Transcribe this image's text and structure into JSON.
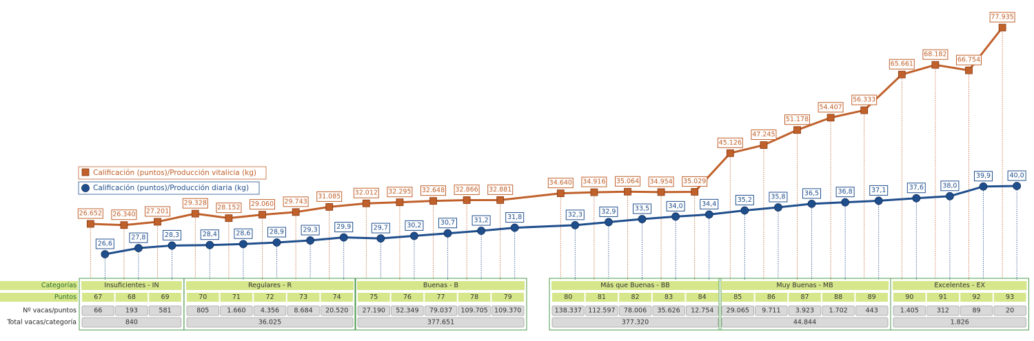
{
  "colors": {
    "orange": "#c0602a",
    "blue": "#1f4e8c",
    "green_cell": "#d6e68a",
    "green_border": "#4a9a4a",
    "gray_cell": "#d9d9d9"
  },
  "legend": {
    "orange_label": "Calificación (puntos)/Producción vitalicia (kg)",
    "blue_label": "Calificación (puntos)/Producción diaria (kg)",
    "placement": "left"
  },
  "table": {
    "row_labels": {
      "categories": "Categorías",
      "points": "Puntos",
      "cows_per_point": "Nº vacas/puntos",
      "total_per_category": "Total vacas/categoría"
    },
    "groups": [
      {
        "name": "Insuficientes - IN",
        "points": [
          "67",
          "68",
          "69"
        ],
        "cows": [
          "66",
          "193",
          "581"
        ],
        "total": "840"
      },
      {
        "name": "Regulares - R",
        "points": [
          "70",
          "71",
          "72",
          "73",
          "74"
        ],
        "cows": [
          "805",
          "1.660",
          "4.356",
          "8.684",
          "20.520"
        ],
        "total": "36.025"
      },
      {
        "name": "Buenas - B",
        "points": [
          "75",
          "76",
          "77",
          "78",
          "79"
        ],
        "cows": [
          "27.190",
          "52.349",
          "79.037",
          "109.705",
          "109.370"
        ],
        "total": "377.651"
      },
      {
        "name": "Más que Buenas - BB",
        "points": [
          "80",
          "81",
          "82",
          "83",
          "84"
        ],
        "cows": [
          "138.337",
          "112.597",
          "78.006",
          "35.626",
          "12.754"
        ],
        "total": "377.320"
      },
      {
        "name": "Muy Buenas - MB",
        "points": [
          "85",
          "86",
          "87",
          "88",
          "89"
        ],
        "cows": [
          "29.065",
          "9.711",
          "3.923",
          "1.702",
          "443"
        ],
        "total": "44.844"
      },
      {
        "name": "Excelentes - EX",
        "points": [
          "90",
          "91",
          "92",
          "93"
        ],
        "cows": [
          "1.405",
          "312",
          "89",
          "20"
        ],
        "total": "1.826"
      }
    ]
  },
  "chart_data": {
    "type": "line",
    "x": [
      67,
      68,
      69,
      70,
      71,
      72,
      73,
      74,
      75,
      76,
      77,
      78,
      79,
      80,
      81,
      82,
      83,
      84,
      85,
      86,
      87,
      88,
      89,
      90,
      91,
      92,
      93
    ],
    "series": [
      {
        "name": "Calificación (puntos)/Producción vitalicia (kg)",
        "marker": "square",
        "values": [
          26652,
          26340,
          27201,
          29328,
          28152,
          29060,
          29743,
          31085,
          32012,
          32295,
          32648,
          32866,
          32881,
          34640,
          34916,
          35064,
          34954,
          35029,
          45126,
          47245,
          51178,
          54407,
          56333,
          65661,
          68182,
          66754,
          77935
        ],
        "labels": [
          "26.652",
          "26.340",
          "27.201",
          "29.328",
          "28.152",
          "29.060",
          "29.743",
          "31.085",
          "32.012",
          "32.295",
          "32.648",
          "32.866",
          "32.881",
          "34.640",
          "34.916",
          "35.064",
          "34.954",
          "35.029",
          "45.126",
          "47.245",
          "51.178",
          "54.407",
          "56.333",
          "65.661",
          "68.182",
          "66.754",
          "77.935"
        ]
      },
      {
        "name": "Calificación (puntos)/Producción diaria (kg)",
        "marker": "circle",
        "values": [
          26.6,
          27.8,
          28.3,
          28.4,
          28.6,
          28.9,
          29.3,
          29.9,
          29.7,
          30.2,
          30.7,
          31.2,
          31.8,
          32.3,
          32.9,
          33.5,
          34.0,
          34.4,
          35.2,
          35.8,
          36.5,
          36.8,
          37.1,
          37.6,
          38.0,
          39.9,
          40.0
        ],
        "labels": [
          "26,6",
          "27,8",
          "28,3",
          "28,4",
          "28,6",
          "28,9",
          "29,3",
          "29,9",
          "29,7",
          "30,2",
          "30,7",
          "31,2",
          "31,8",
          "32,3",
          "32,9",
          "33,5",
          "34,0",
          "34,4",
          "35,2",
          "35,8",
          "36,5",
          "36,8",
          "37,1",
          "37,6",
          "38,0",
          "39,9",
          "40,0"
        ]
      }
    ],
    "grid": false,
    "title": "",
    "xlabel": "",
    "ylabel": ""
  }
}
